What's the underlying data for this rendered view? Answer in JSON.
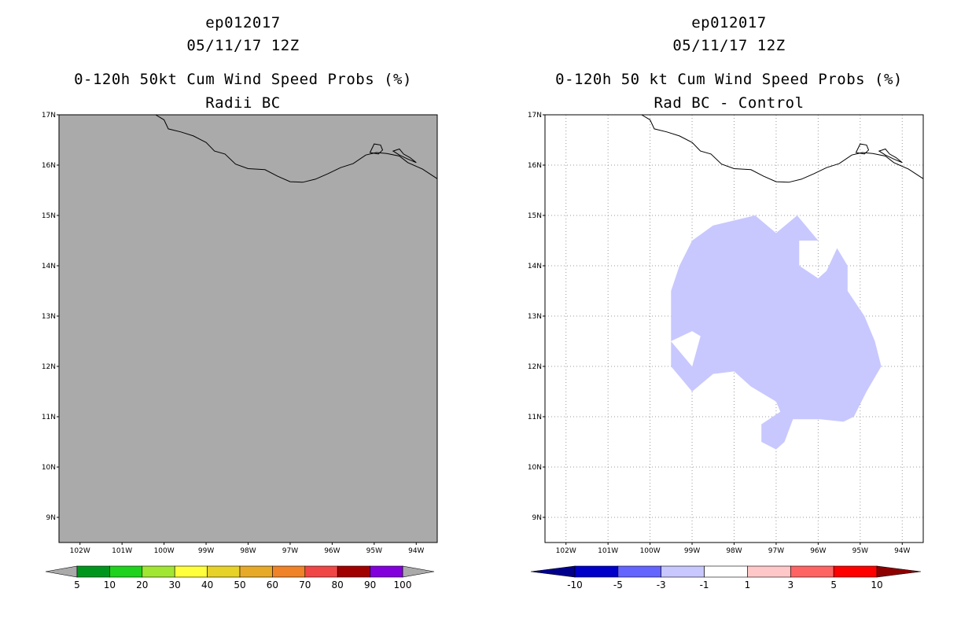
{
  "chart_data": [
    {
      "type": "heatmap",
      "storm_id": "ep012017",
      "datetime": "05/11/17 12Z",
      "title": "0-120h 50kt Cum Wind Speed Probs (%)",
      "subtitle": "Radii BC",
      "xlim": [
        -102.5,
        -93.5
      ],
      "ylim": [
        8.5,
        17
      ],
      "x_ticks": [
        "102W",
        "101W",
        "100W",
        "99W",
        "98W",
        "97W",
        "96W",
        "95W",
        "94W"
      ],
      "y_ticks": [
        "9N",
        "10N",
        "11N",
        "12N",
        "13N",
        "14N",
        "15N",
        "16N",
        "17N"
      ],
      "grid": false,
      "background_color": "#aaaaaa",
      "colorbar": {
        "labels": [
          "5",
          "10",
          "20",
          "30",
          "40",
          "50",
          "60",
          "70",
          "80",
          "90",
          "100"
        ],
        "colors": [
          "#00961e",
          "#1ed21e",
          "#a0e632",
          "#ffff3c",
          "#e6d228",
          "#e6aa28",
          "#f08228",
          "#f04646",
          "#a00000",
          "#8200dc"
        ],
        "end_colors": [
          "#aaaaaa",
          "#aaaaaa"
        ]
      }
    },
    {
      "type": "heatmap",
      "storm_id": "ep012017",
      "datetime": "05/11/17 12Z",
      "title": "0-120h 50 kt Cum Wind Speed Probs (%)",
      "subtitle": "Rad BC - Control",
      "xlim": [
        -102.5,
        -93.5
      ],
      "ylim": [
        8.5,
        17
      ],
      "x_ticks": [
        "102W",
        "101W",
        "100W",
        "99W",
        "98W",
        "97W",
        "96W",
        "95W",
        "94W"
      ],
      "y_ticks": [
        "9N",
        "10N",
        "11N",
        "12N",
        "13N",
        "14N",
        "15N",
        "16N",
        "17N"
      ],
      "grid": true,
      "background_color": "#ffffff",
      "region": {
        "range": "-3 to -1",
        "color": "#c8c8ff",
        "outline": [
          [
            -99.5,
            13.5
          ],
          [
            -99.5,
            12.5
          ],
          [
            -99.0,
            12.7
          ],
          [
            -98.8,
            12.6
          ],
          [
            -99.0,
            12.0
          ],
          [
            -99.5,
            12.5
          ],
          [
            -99.5,
            12.0
          ],
          [
            -99.0,
            11.5
          ],
          [
            -98.5,
            11.85
          ],
          [
            -98.0,
            11.9
          ],
          [
            -97.6,
            11.6
          ],
          [
            -97.0,
            11.3
          ],
          [
            -96.9,
            11.1
          ],
          [
            -97.35,
            10.85
          ],
          [
            -97.35,
            10.5
          ],
          [
            -97.0,
            10.35
          ],
          [
            -96.8,
            10.5
          ],
          [
            -96.6,
            10.95
          ],
          [
            -95.95,
            10.95
          ],
          [
            -95.4,
            10.9
          ],
          [
            -95.15,
            11.0
          ],
          [
            -94.85,
            11.5
          ],
          [
            -94.5,
            12.0
          ],
          [
            -94.65,
            12.5
          ],
          [
            -94.9,
            13.0
          ],
          [
            -95.3,
            13.5
          ],
          [
            -95.3,
            14.0
          ],
          [
            -95.55,
            14.35
          ],
          [
            -95.8,
            13.9
          ],
          [
            -96.0,
            13.75
          ],
          [
            -96.45,
            14.0
          ],
          [
            -96.45,
            14.5
          ],
          [
            -96.0,
            14.5
          ],
          [
            -96.5,
            15.0
          ],
          [
            -97.0,
            14.65
          ],
          [
            -97.5,
            15.0
          ],
          [
            -98.0,
            14.9
          ],
          [
            -98.5,
            14.8
          ],
          [
            -99.0,
            14.5
          ],
          [
            -99.3,
            14.0
          ]
        ],
        "hole": [
          [
            -99.0,
            12.7
          ],
          [
            -98.8,
            12.6
          ],
          [
            -99.0,
            12.0
          ],
          [
            -99.5,
            12.5
          ]
        ]
      },
      "colorbar": {
        "labels": [
          "-10",
          "-5",
          "-3",
          "-1",
          "1",
          "3",
          "5",
          "10"
        ],
        "colors": [
          "#0000c8",
          "#6464ff",
          "#c8c8ff",
          "#ffffff",
          "#ffc8c8",
          "#ff6464",
          "#ff0000"
        ],
        "end_colors": [
          "#00008c",
          "#8c0000"
        ]
      }
    }
  ]
}
